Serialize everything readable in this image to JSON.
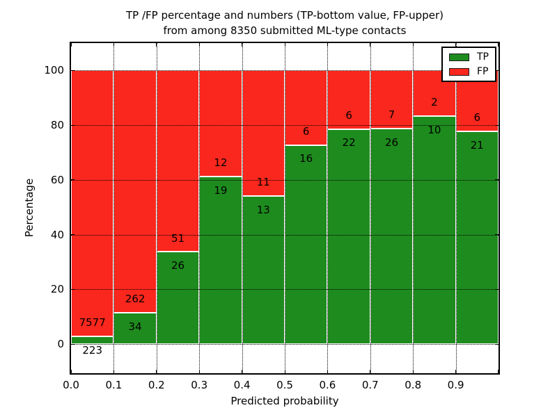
{
  "chart_data": {
    "type": "bar",
    "stacked": true,
    "normalized": "percent",
    "title_lines": [
      "TP /FP percentage and numbers (TP-bottom value, FP-upper)",
      "from among 8350 submitted ML-type contacts"
    ],
    "xlabel": "Predicted probability",
    "ylabel": "Percentage",
    "xlim": [
      0.0,
      1.0
    ],
    "ylim": [
      -10.6,
      110.0
    ],
    "x_ticks": [
      "0.0",
      "0.1",
      "0.2",
      "0.3",
      "0.4",
      "0.5",
      "0.6",
      "0.7",
      "0.8",
      "0.9"
    ],
    "y_ticks": [
      "0",
      "20",
      "40",
      "60",
      "80",
      "100"
    ],
    "y_tick_values": [
      0,
      20,
      40,
      60,
      80,
      100
    ],
    "grid": "dotted, both axes",
    "legend": {
      "position": "upper right",
      "entries": [
        {
          "label": "TP",
          "color": "#1e8b1e"
        },
        {
          "label": "FP",
          "color": "#f9271d"
        }
      ]
    },
    "bins": [
      {
        "x_start": 0.0,
        "x_end": 0.1,
        "tp": 223,
        "fp": 7577
      },
      {
        "x_start": 0.1,
        "x_end": 0.2,
        "tp": 34,
        "fp": 262
      },
      {
        "x_start": 0.2,
        "x_end": 0.3,
        "tp": 26,
        "fp": 51
      },
      {
        "x_start": 0.3,
        "x_end": 0.4,
        "tp": 19,
        "fp": 12
      },
      {
        "x_start": 0.4,
        "x_end": 0.5,
        "tp": 13,
        "fp": 11
      },
      {
        "x_start": 0.5,
        "x_end": 0.6,
        "tp": 16,
        "fp": 6
      },
      {
        "x_start": 0.6,
        "x_end": 0.7,
        "tp": 22,
        "fp": 6
      },
      {
        "x_start": 0.7,
        "x_end": 0.8,
        "tp": 26,
        "fp": 7
      },
      {
        "x_start": 0.8,
        "x_end": 0.9,
        "tp": 10,
        "fp": 2
      },
      {
        "x_start": 0.9,
        "x_end": 1.0,
        "tp": 21,
        "fp": 6
      }
    ]
  },
  "colors": {
    "tp": "#1e8b1e",
    "fp": "#f9271d",
    "grid": "#000000",
    "spine": "#000000",
    "background": "#ffffff"
  }
}
